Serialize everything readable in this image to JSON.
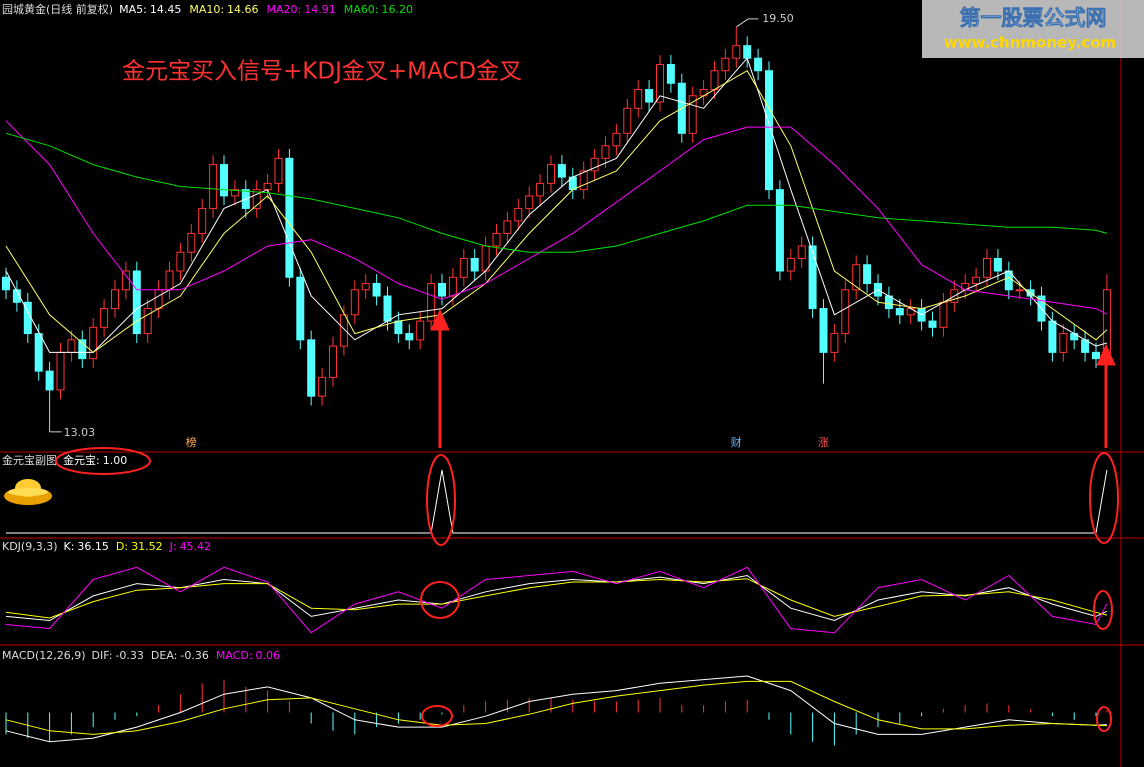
{
  "chart_data": [
    {
      "type": "candlestick",
      "title": "园城黄金(日线 前复权)",
      "up_color": "#ff3232",
      "down_color": "#54ffff",
      "ylim": [
        12.74,
        19.93
      ],
      "open": [
        15.5,
        15.3,
        15.1,
        14.6,
        14.0,
        13.7,
        14.3,
        14.5,
        14.2,
        14.7,
        15.0,
        15.3,
        15.6,
        14.6,
        15.0,
        15.3,
        15.6,
        15.9,
        16.2,
        16.6,
        17.3,
        16.8,
        16.9,
        16.6,
        16.9,
        17.0,
        17.4,
        15.5,
        14.5,
        13.6,
        13.9,
        14.4,
        14.9,
        15.3,
        15.4,
        15.2,
        14.8,
        14.6,
        14.5,
        14.8,
        15.4,
        15.2,
        15.5,
        15.8,
        15.6,
        16.0,
        16.2,
        16.4,
        16.6,
        16.8,
        17.0,
        17.3,
        17.1,
        16.9,
        17.2,
        17.4,
        17.6,
        17.8,
        18.2,
        18.5,
        18.3,
        18.9,
        18.6,
        17.8,
        18.4,
        18.5,
        18.8,
        19.0,
        19.2,
        19.0,
        18.8,
        16.9,
        15.6,
        15.8,
        16.0,
        15.0,
        14.3,
        14.6,
        15.3,
        15.7,
        15.4,
        15.2,
        15.0,
        14.9,
        15.0,
        14.8,
        14.7,
        15.1,
        15.3,
        15.4,
        15.5,
        15.8,
        15.6,
        15.3,
        15.3,
        15.2,
        14.8,
        14.3,
        14.6,
        14.5,
        14.3,
        14.2
      ],
      "high": [
        15.65,
        15.45,
        15.25,
        14.75,
        14.15,
        14.45,
        14.65,
        14.65,
        14.85,
        15.15,
        15.45,
        15.75,
        15.75,
        15.15,
        15.45,
        15.75,
        16.05,
        16.35,
        16.75,
        17.45,
        17.45,
        17.05,
        17.05,
        17.05,
        17.15,
        17.55,
        17.55,
        15.65,
        14.65,
        14.05,
        14.55,
        15.05,
        15.45,
        15.55,
        15.55,
        15.35,
        14.95,
        14.75,
        14.95,
        15.55,
        15.55,
        15.65,
        15.95,
        15.95,
        16.15,
        16.35,
        16.55,
        16.75,
        16.95,
        17.15,
        17.45,
        17.45,
        17.25,
        17.35,
        17.55,
        17.75,
        17.95,
        18.35,
        18.65,
        18.65,
        19.05,
        19.05,
        18.75,
        18.55,
        18.65,
        18.95,
        19.15,
        19.5,
        19.35,
        19.15,
        18.95,
        17.05,
        15.95,
        16.15,
        16.15,
        15.15,
        14.75,
        15.45,
        15.85,
        15.85,
        15.55,
        15.35,
        15.15,
        15.15,
        15.15,
        14.95,
        15.25,
        15.45,
        15.55,
        15.65,
        15.95,
        15.95,
        15.75,
        15.45,
        15.45,
        15.35,
        14.95,
        14.75,
        14.75,
        14.65,
        14.45,
        15.55
      ],
      "low": [
        15.15,
        14.95,
        14.45,
        13.85,
        13.03,
        13.55,
        14.15,
        14.05,
        14.05,
        14.55,
        14.85,
        15.15,
        14.45,
        14.45,
        14.85,
        15.15,
        15.45,
        15.75,
        16.05,
        16.45,
        16.65,
        16.65,
        16.45,
        16.45,
        16.75,
        16.85,
        15.35,
        14.35,
        13.45,
        13.45,
        13.75,
        14.25,
        14.75,
        15.15,
        15.05,
        14.65,
        14.45,
        14.35,
        14.35,
        14.65,
        15.05,
        15.05,
        15.35,
        15.45,
        15.45,
        15.85,
        16.05,
        16.25,
        16.45,
        16.65,
        16.85,
        16.95,
        16.75,
        16.75,
        17.05,
        17.25,
        17.45,
        17.65,
        18.05,
        18.15,
        18.15,
        18.45,
        17.65,
        17.65,
        18.25,
        18.35,
        18.65,
        18.85,
        18.85,
        18.65,
        16.75,
        15.45,
        15.45,
        15.65,
        14.85,
        13.8,
        14.15,
        14.45,
        15.15,
        15.25,
        15.05,
        14.85,
        14.75,
        14.75,
        14.65,
        14.55,
        14.55,
        14.95,
        15.15,
        15.25,
        15.35,
        15.45,
        15.15,
        15.15,
        15.05,
        14.65,
        14.15,
        14.15,
        14.35,
        14.15,
        14.05,
        14.05
      ],
      "close": [
        15.3,
        15.1,
        14.6,
        14.0,
        13.7,
        14.3,
        14.5,
        14.2,
        14.7,
        15.0,
        15.3,
        15.6,
        14.6,
        15.0,
        15.3,
        15.6,
        15.9,
        16.2,
        16.6,
        17.3,
        16.8,
        16.9,
        16.6,
        16.9,
        17.0,
        17.4,
        15.5,
        14.5,
        13.6,
        13.9,
        14.4,
        14.9,
        15.3,
        15.4,
        15.2,
        14.8,
        14.6,
        14.5,
        14.8,
        15.4,
        15.2,
        15.5,
        15.8,
        15.6,
        16.0,
        16.2,
        16.4,
        16.6,
        16.8,
        17.0,
        17.3,
        17.1,
        16.9,
        17.2,
        17.4,
        17.6,
        17.8,
        18.2,
        18.5,
        18.3,
        18.9,
        18.6,
        17.8,
        18.4,
        18.5,
        18.8,
        19.0,
        19.2,
        19.0,
        18.8,
        16.9,
        15.6,
        15.8,
        16.0,
        15.0,
        14.3,
        14.6,
        15.3,
        15.7,
        15.4,
        15.2,
        15.0,
        14.9,
        15.0,
        14.8,
        14.7,
        15.1,
        15.3,
        15.4,
        15.5,
        15.8,
        15.6,
        15.3,
        15.3,
        15.2,
        14.8,
        14.3,
        14.6,
        14.5,
        14.3,
        14.2,
        15.3
      ],
      "ma_x": [
        0,
        4,
        8,
        12,
        16,
        20,
        24,
        28,
        32,
        36,
        40,
        44,
        48,
        52,
        56,
        60,
        64,
        68,
        72,
        76,
        80,
        84,
        88,
        92,
        96,
        100,
        101
      ],
      "ma": [
        {
          "name": "MA5:",
          "readout": "14.45",
          "color": "#ffffff",
          "values": [
            15.6,
            14.3,
            14.3,
            15.0,
            15.4,
            16.6,
            16.9,
            15.2,
            14.5,
            14.9,
            15.0,
            15.6,
            16.5,
            17.1,
            17.4,
            18.4,
            18.2,
            19.0,
            16.9,
            14.9,
            15.3,
            14.9,
            15.3,
            15.6,
            14.8,
            14.4,
            14.45
          ]
        },
        {
          "name": "MA10:",
          "readout": "14.66",
          "color": "#ffff66",
          "values": [
            16.0,
            14.9,
            14.3,
            14.8,
            15.2,
            16.2,
            16.8,
            15.9,
            14.6,
            14.8,
            14.9,
            15.4,
            16.2,
            16.9,
            17.2,
            18.0,
            18.4,
            18.8,
            17.6,
            15.6,
            15.1,
            15.0,
            15.2,
            15.5,
            15.0,
            14.5,
            14.66
          ]
        },
        {
          "name": "MA20:",
          "readout": "14.91",
          "color": "#ff00ff",
          "values": [
            18.0,
            17.3,
            16.2,
            15.3,
            15.3,
            15.6,
            16.0,
            16.1,
            15.8,
            15.4,
            15.15,
            15.4,
            15.8,
            16.2,
            16.7,
            17.2,
            17.7,
            17.9,
            17.9,
            17.3,
            16.6,
            15.7,
            15.3,
            15.2,
            15.1,
            15.0,
            14.91
          ]
        },
        {
          "name": "MA60:",
          "readout": "16.20",
          "color": "#00e000",
          "values": [
            17.8,
            17.6,
            17.3,
            17.1,
            16.95,
            16.9,
            16.85,
            16.75,
            16.6,
            16.45,
            16.2,
            16.0,
            15.9,
            15.9,
            16.0,
            16.2,
            16.4,
            16.65,
            16.65,
            16.55,
            16.45,
            16.4,
            16.35,
            16.3,
            16.3,
            16.25,
            16.2
          ]
        }
      ],
      "annotations": {
        "headline": "金元宝买入信号+KDJ金叉+MACD金叉",
        "high_label": "19.50",
        "low_label": "13.03",
        "events": [
          {
            "index": 17,
            "label": "榜",
            "color": "#ffaa55"
          },
          {
            "index": 67,
            "label": "财",
            "color": "#66b3ff"
          },
          {
            "index": 75,
            "label": "涨",
            "color": "#ff5050"
          }
        ]
      }
    },
    {
      "type": "line",
      "title": "金元宝副图",
      "name": "金元宝:",
      "readout": "1.00",
      "color": "#ffffff",
      "x": [
        0,
        39,
        40,
        41,
        100,
        101
      ],
      "values": [
        0,
        0,
        1,
        0,
        0,
        1
      ],
      "ylim": [
        0,
        1
      ]
    },
    {
      "type": "line",
      "title": "KDJ(9,3,3)",
      "ylim": [
        -5,
        105
      ],
      "x": [
        0,
        4,
        8,
        12,
        16,
        20,
        24,
        28,
        32,
        36,
        40,
        44,
        48,
        52,
        56,
        60,
        64,
        68,
        72,
        76,
        80,
        84,
        88,
        92,
        96,
        100,
        101
      ],
      "series": [
        {
          "name": "K:",
          "readout": "36.15",
          "color": "#ffffff",
          "values": [
            30,
            25,
            55,
            70,
            65,
            75,
            70,
            30,
            40,
            50,
            45,
            60,
            70,
            75,
            72,
            78,
            70,
            80,
            40,
            25,
            50,
            60,
            55,
            65,
            45,
            30,
            36.15
          ]
        },
        {
          "name": "D:",
          "readout": "31.52",
          "color": "#ffff00",
          "values": [
            35,
            28,
            48,
            62,
            65,
            70,
            70,
            40,
            38,
            45,
            45,
            55,
            65,
            72,
            72,
            75,
            72,
            76,
            50,
            30,
            42,
            55,
            56,
            60,
            50,
            35,
            31.52
          ]
        },
        {
          "name": "J:",
          "readout": "45.42",
          "color": "#ff00ff",
          "values": [
            20,
            15,
            75,
            90,
            60,
            90,
            72,
            10,
            45,
            60,
            40,
            75,
            80,
            85,
            70,
            85,
            65,
            90,
            15,
            10,
            65,
            75,
            50,
            80,
            30,
            20,
            45.42
          ]
        }
      ]
    },
    {
      "type": "macd",
      "title": "MACD(12,26,9)",
      "ylim": [
        -1.3,
        1.3
      ],
      "x": [
        0,
        4,
        8,
        12,
        16,
        20,
        24,
        28,
        32,
        36,
        40,
        44,
        48,
        52,
        56,
        60,
        64,
        68,
        72,
        76,
        80,
        84,
        88,
        92,
        96,
        100,
        101
      ],
      "series": [
        {
          "name": "DIF:",
          "readout": "-0.33",
          "color": "#ffffff",
          "values": [
            -0.5,
            -0.8,
            -0.7,
            -0.4,
            0.0,
            0.5,
            0.7,
            0.4,
            -0.2,
            -0.4,
            -0.4,
            -0.1,
            0.3,
            0.5,
            0.6,
            0.8,
            0.9,
            1.0,
            0.6,
            -0.3,
            -0.6,
            -0.6,
            -0.4,
            -0.2,
            -0.3,
            -0.35,
            -0.33
          ]
        },
        {
          "name": "DEA:",
          "readout": "-0.36",
          "color": "#ffff00",
          "values": [
            -0.2,
            -0.5,
            -0.6,
            -0.5,
            -0.25,
            0.1,
            0.35,
            0.4,
            0.1,
            -0.2,
            -0.35,
            -0.3,
            -0.05,
            0.25,
            0.45,
            0.6,
            0.75,
            0.85,
            0.85,
            0.3,
            -0.2,
            -0.45,
            -0.45,
            -0.35,
            -0.3,
            -0.35,
            -0.36
          ]
        }
      ],
      "bars": {
        "name": "MACD:",
        "readout": "0.06",
        "color": "#ff00ff",
        "up_color": "#ff3232",
        "down_color": "#54ffff",
        "x": [
          0,
          2,
          4,
          6,
          8,
          10,
          12,
          14,
          16,
          18,
          20,
          22,
          24,
          26,
          28,
          30,
          32,
          34,
          36,
          38,
          40,
          42,
          44,
          46,
          48,
          50,
          52,
          54,
          56,
          58,
          60,
          62,
          64,
          66,
          68,
          70,
          72,
          74,
          76,
          78,
          80,
          82,
          84,
          86,
          88,
          90,
          92,
          94,
          96,
          98,
          100,
          101
        ],
        "values": [
          -0.6,
          -0.7,
          -0.8,
          -0.6,
          -0.4,
          -0.2,
          -0.1,
          0.2,
          0.5,
          0.8,
          0.9,
          0.7,
          0.6,
          0.3,
          -0.3,
          -0.5,
          -0.6,
          -0.4,
          -0.3,
          -0.2,
          -0.05,
          0.2,
          0.3,
          0.35,
          0.4,
          0.4,
          0.35,
          0.3,
          0.3,
          0.35,
          0.4,
          0.2,
          0.2,
          0.3,
          0.35,
          -0.2,
          -0.6,
          -0.8,
          -0.9,
          -0.6,
          -0.4,
          -0.3,
          -0.1,
          0.1,
          0.2,
          0.25,
          0.2,
          0.1,
          -0.1,
          -0.2,
          -0.1,
          0.06
        ]
      }
    }
  ],
  "watermark": {
    "name": "第一股票公式网",
    "url": "www.chnmoney.com"
  }
}
